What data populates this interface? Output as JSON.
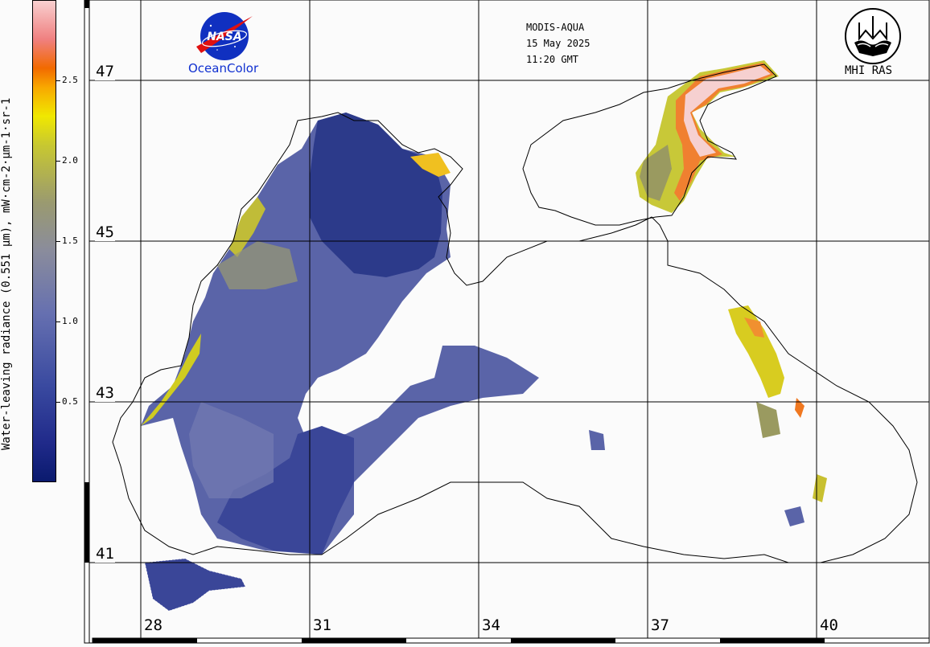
{
  "header": {
    "sensor": "MODIS-AQUA",
    "date": "15 May 2025",
    "time": "11:20 GMT"
  },
  "logos": {
    "nasa_text": "NASA",
    "oceancolor": "OceanColor",
    "mhi": "MHI RAS"
  },
  "colorbar": {
    "title": "Water-leaving radiance (0.551 µm), mW·cm-2·µm-1·sr-1",
    "ticks": [
      "2.5",
      "2.0",
      "1.5",
      "1.0",
      "0.5"
    ],
    "tick_values": [
      2.5,
      2.0,
      1.5,
      1.0,
      0.5
    ],
    "range": [
      0,
      3.0
    ],
    "colors": [
      "#0a1a6e",
      "#3a4aa0",
      "#8a8c9c",
      "#c8c830",
      "#f0e800",
      "#f26a00",
      "#f8d0d0"
    ]
  },
  "grid": {
    "latitudes": [
      "47",
      "45",
      "43",
      "41"
    ],
    "longitudes": [
      "28",
      "31",
      "34",
      "37",
      "40"
    ]
  },
  "map": {
    "coastline_color": "#000000",
    "water_dark": "#1a2a7a",
    "water_mid": "#5a64a8",
    "turbid_yellow": "#d8d020",
    "turbid_orange": "#f07820",
    "turbid_pink": "#f4c8c8"
  }
}
